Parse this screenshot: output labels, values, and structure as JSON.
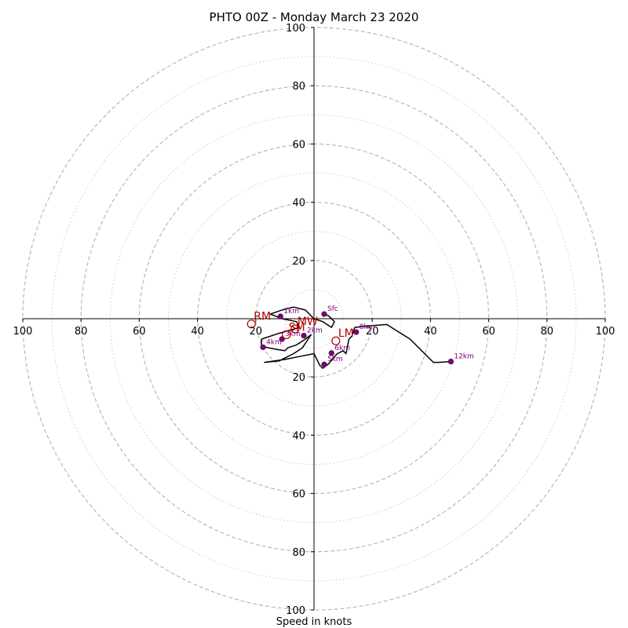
{
  "chart_data": {
    "type": "hodograph",
    "title": "PHTO 00Z - Monday March 23 2020",
    "xlabel": "Speed in knots",
    "range": [
      -100,
      100
    ],
    "ring_major": [
      20,
      40,
      60,
      80,
      100
    ],
    "ring_minor": [
      10,
      30,
      50,
      70,
      90
    ],
    "h_ticks": [
      {
        "v": -100,
        "label": "100"
      },
      {
        "v": -80,
        "label": "80"
      },
      {
        "v": -60,
        "label": "60"
      },
      {
        "v": -40,
        "label": "40"
      },
      {
        "v": -20,
        "label": "20"
      },
      {
        "v": 20,
        "label": "20"
      },
      {
        "v": 40,
        "label": "40"
      },
      {
        "v": 60,
        "label": "60"
      },
      {
        "v": 80,
        "label": "80"
      },
      {
        "v": 100,
        "label": "100"
      }
    ],
    "v_ticks": [
      {
        "v": 100,
        "label": "100"
      },
      {
        "v": 80,
        "label": "80"
      },
      {
        "v": 60,
        "label": "60"
      },
      {
        "v": 40,
        "label": "40"
      },
      {
        "v": 20,
        "label": "20"
      },
      {
        "v": -20,
        "label": "20"
      },
      {
        "v": -40,
        "label": "40"
      },
      {
        "v": -60,
        "label": "60"
      },
      {
        "v": -80,
        "label": "80"
      },
      {
        "v": -100,
        "label": "100"
      }
    ],
    "trace": {
      "u": [
        3.5,
        5,
        7,
        6,
        3,
        0,
        -3,
        -7,
        -11,
        -15,
        -11,
        -6,
        -5,
        -12,
        -18,
        -18,
        -13,
        -10,
        -9,
        -6,
        -3,
        -1,
        -2,
        -4,
        -7,
        -12,
        -17,
        -10,
        -5,
        0,
        2,
        3,
        5,
        7,
        8,
        10,
        11,
        12,
        13,
        14,
        18,
        25,
        33,
        41,
        43,
        47
      ],
      "v": [
        1.6,
        1.0,
        -1.0,
        -3.0,
        -1.0,
        0.0,
        3.0,
        4.0,
        3.0,
        1.6,
        0.0,
        -1.0,
        -3.0,
        -5.0,
        -7.0,
        -9.5,
        -10.5,
        -11.0,
        -10.0,
        -9.0,
        -7.0,
        -5.5,
        -7.0,
        -10.0,
        -12.0,
        -14.5,
        -15.0,
        -14.0,
        -13.0,
        -12.0,
        -16.0,
        -17.0,
        -15.5,
        -13.0,
        -12.0,
        -11.0,
        -12.0,
        -7.0,
        -6.0,
        -3.0,
        -2.5,
        -2.0,
        -7.0,
        -15.0,
        -15.0,
        -14.7
      ]
    },
    "points": [
      {
        "label": "Sfc",
        "u": 3.5,
        "v": 1.6
      },
      {
        "label": "1km",
        "u": -11.5,
        "v": 0.8
      },
      {
        "label": "2km",
        "u": -3.5,
        "v": -5.8
      },
      {
        "label": "3km",
        "u": -11,
        "v": -7
      },
      {
        "label": "4km",
        "u": -17.5,
        "v": -9.8
      },
      {
        "label": "5km",
        "u": 3.5,
        "v": -15.7
      },
      {
        "label": "6km",
        "u": 6,
        "v": -11.8
      },
      {
        "label": "8km",
        "u": 14.5,
        "v": -4.6
      },
      {
        "label": "12km",
        "u": 47,
        "v": -14.7
      }
    ],
    "motions": [
      {
        "label": "RM",
        "u": -21.5,
        "v": -1.8
      },
      {
        "label": "LM",
        "u": 7.5,
        "v": -7.6
      },
      {
        "label": "MW",
        "u": -6.5,
        "v": -3.5
      },
      {
        "label": "SM",
        "u": -9.5,
        "v": -5.5
      }
    ]
  }
}
